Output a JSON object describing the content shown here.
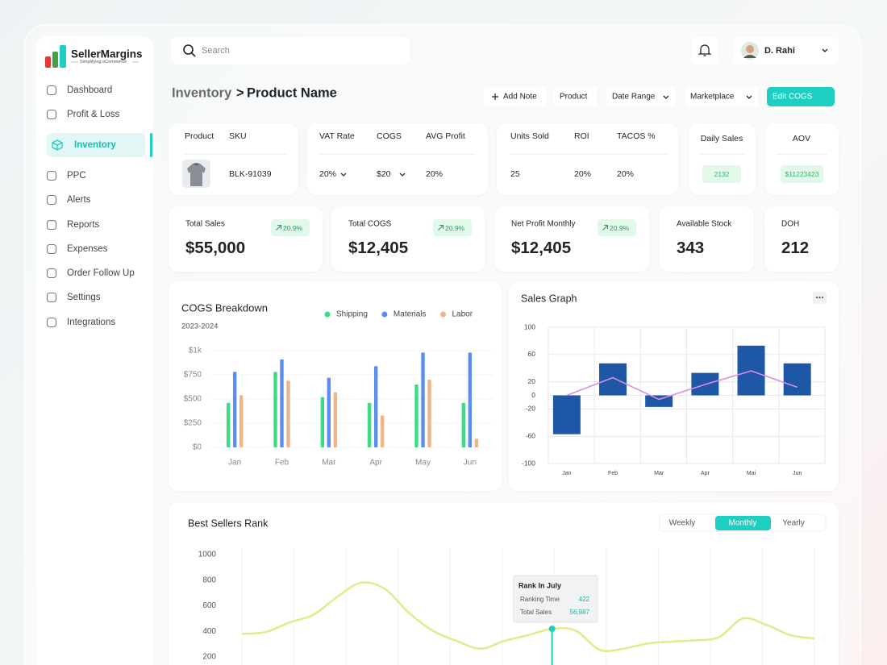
{
  "brand": {
    "name": "SellerMargins",
    "tagline": "Simplifying eCommerce"
  },
  "nav": [
    {
      "label": "Dashboard"
    },
    {
      "label": "Profit & Loss"
    },
    {
      "label": "Inventory",
      "active": true
    },
    {
      "label": "PPC"
    },
    {
      "label": "Alerts"
    },
    {
      "label": "Reports"
    },
    {
      "label": "Expenses"
    },
    {
      "label": "Order Follow Up"
    },
    {
      "label": "Settings"
    },
    {
      "label": "Integrations"
    }
  ],
  "search": {
    "placeholder": "Search"
  },
  "user": {
    "name": "D. Rahi"
  },
  "breadcrumb": {
    "parent": "Inventory",
    "separator": ">",
    "current": "Product Name"
  },
  "actions": [
    "Add Note",
    "Product",
    "Date Range",
    "Marketplace",
    "Edit COGS"
  ],
  "product_card": {
    "headers": [
      "Product",
      "SKU"
    ],
    "sku": "BLK-91039"
  },
  "info_cards": [
    {
      "headers": [
        "VAT Rate",
        "COGS",
        "AVG Profit"
      ],
      "values": [
        "20%",
        "$20",
        "20%"
      ]
    },
    {
      "headers": [
        "Units Sold",
        "ROI",
        "TACOS %"
      ],
      "values": [
        "25",
        "20%",
        "20%"
      ]
    }
  ],
  "badge_cards": [
    {
      "label": "Daily Sales",
      "value": "2132"
    },
    {
      "label": "AOV",
      "value": "$11223423"
    }
  ],
  "stats": [
    {
      "label": "Total Sales",
      "value": "$55,000",
      "change": "20.9%"
    },
    {
      "label": "Total COGS",
      "value": "$12,405",
      "change": "20.9%"
    },
    {
      "label": "Net Profit Monthly",
      "value": "$12,405",
      "change": "20.9%"
    },
    {
      "label": "Available Stock",
      "value": "343"
    },
    {
      "label": "DOH",
      "value": "212"
    }
  ],
  "chart_data": [
    {
      "type": "bar",
      "title": "COGS Breakdown",
      "subtitle": "2023-2024",
      "categories": [
        "Jan",
        "Feb",
        "Mar",
        "Apr",
        "May",
        "Jun"
      ],
      "series": [
        {
          "name": "Shipping",
          "color": "#3ddc84",
          "values": [
            460,
            780,
            520,
            460,
            650,
            460
          ]
        },
        {
          "name": "Materials",
          "color": "#5b8def",
          "values": [
            780,
            910,
            720,
            840,
            980,
            980
          ]
        },
        {
          "name": "Labor",
          "color": "#f0b48a",
          "values": [
            540,
            690,
            570,
            330,
            700,
            90
          ]
        }
      ],
      "ylim": [
        0,
        1000
      ],
      "yticks": [
        {
          "value": 0,
          "label": "$0"
        },
        {
          "value": 250,
          "label": "$250"
        },
        {
          "value": 500,
          "label": "$500"
        },
        {
          "value": 750,
          "label": "$750"
        },
        {
          "value": 1000,
          "label": "$1k"
        }
      ],
      "grid": true,
      "legend": "top"
    },
    {
      "type": "combo",
      "title": "Sales Graph",
      "categories": [
        "Jan",
        "Feb",
        "Mar",
        "Apr",
        "Mai",
        "Jun"
      ],
      "series": [
        {
          "type": "bar",
          "color": "#1d57a5",
          "values": [
            -57,
            47,
            -17,
            33,
            73,
            47
          ]
        },
        {
          "type": "line",
          "color": "#d98be6",
          "values": [
            0,
            26,
            -6,
            16,
            36,
            12
          ]
        }
      ],
      "ylim": [
        -100,
        100
      ],
      "yticks": [
        100,
        60,
        20,
        0,
        -20,
        -60,
        -100
      ],
      "grid": true
    },
    {
      "type": "line",
      "title": "Best Sellers Rank",
      "tabs": [
        {
          "label": "Weekly"
        },
        {
          "label": "Monthly",
          "active": true
        },
        {
          "label": "Yearly"
        }
      ],
      "categories": [
        null,
        null,
        null,
        null,
        null,
        null,
        null,
        null,
        null,
        null,
        null,
        null,
        null,
        null,
        null,
        null,
        null,
        null,
        null,
        null,
        null,
        null,
        null,
        null,
        null
      ],
      "series": [
        {
          "color": "#e4ea8a",
          "values": [
            380,
            395,
            470,
            530,
            670,
            780,
            730,
            545,
            405,
            325,
            265,
            325,
            370,
            420,
            405,
            255,
            265,
            305,
            320,
            330,
            355,
            500,
            450,
            370,
            345
          ]
        }
      ],
      "highlight": 13,
      "tooltip": {
        "title": "Rank In July",
        "rows": [
          {
            "label": "Ranking Time",
            "value": "422"
          },
          {
            "label": "Total Sales",
            "value": "56,987"
          }
        ]
      },
      "ylim": [
        200,
        1000
      ],
      "yticks": [
        200,
        400,
        600,
        800,
        1000
      ]
    }
  ]
}
